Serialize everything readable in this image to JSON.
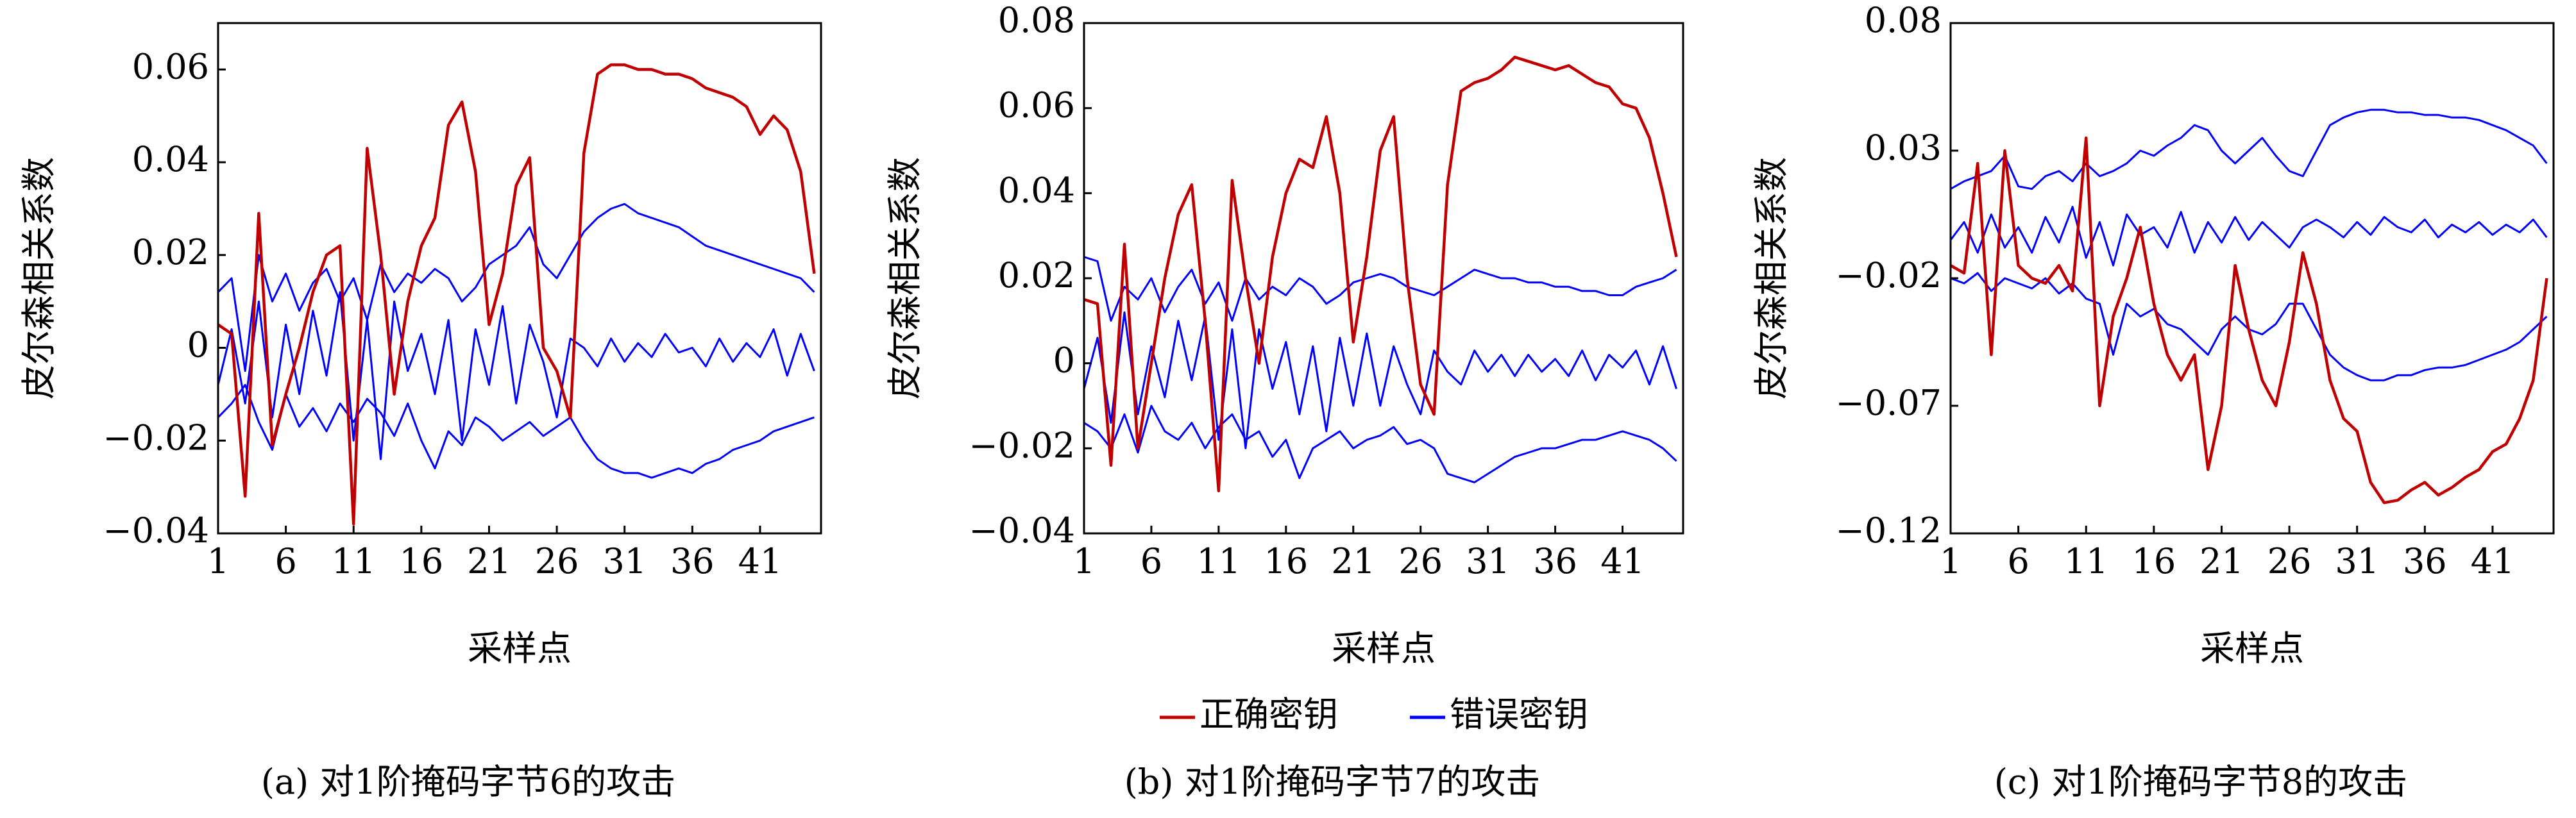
{
  "chart_data": [
    {
      "type": "line",
      "caption": "(a) 对1阶掩码字节6的攻击",
      "xlabel": "采样点",
      "ylabel": "皮尔森相关系数",
      "x": [
        1,
        2,
        3,
        4,
        5,
        6,
        7,
        8,
        9,
        10,
        11,
        12,
        13,
        14,
        15,
        16,
        17,
        18,
        19,
        20,
        21,
        22,
        23,
        24,
        25,
        26,
        27,
        28,
        29,
        30,
        31,
        32,
        33,
        34,
        35,
        36,
        37,
        38,
        39,
        40,
        41,
        42,
        43,
        44,
        45
      ],
      "xlim": [
        1,
        45.5
      ],
      "xticks": [
        1,
        6,
        11,
        16,
        21,
        26,
        31,
        36,
        41
      ],
      "ylim": [
        -0.04,
        0.07
      ],
      "yticks": [
        {
          "value": -0.04,
          "label": "−0.04"
        },
        {
          "value": -0.02,
          "label": "−0.02"
        },
        0,
        0.02,
        0.04,
        0.06
      ],
      "series": [
        {
          "name": "正确密钥",
          "color": "#c00000",
          "values": [
            0.005,
            0.003,
            -0.032,
            0.029,
            -0.021,
            -0.01,
            0.0,
            0.012,
            0.02,
            0.022,
            -0.038,
            0.043,
            0.02,
            -0.01,
            0.01,
            0.022,
            0.028,
            0.048,
            0.053,
            0.038,
            0.005,
            0.016,
            0.035,
            0.041,
            0.0,
            -0.005,
            -0.015,
            0.042,
            0.059,
            0.061,
            0.061,
            0.06,
            0.06,
            0.059,
            0.059,
            0.058,
            0.056,
            0.055,
            0.054,
            0.052,
            0.046,
            0.05,
            0.047,
            0.038,
            0.016
          ]
        },
        {
          "name": "错误密钥",
          "color": "#0000ff",
          "values": [
            0.012,
            0.015,
            -0.005,
            0.02,
            0.01,
            0.016,
            0.008,
            0.014,
            0.017,
            0.01,
            0.015,
            0.006,
            0.018,
            0.012,
            0.016,
            0.014,
            0.017,
            0.015,
            0.01,
            0.013,
            0.018,
            0.02,
            0.022,
            0.026,
            0.018,
            0.015,
            0.02,
            0.025,
            0.028,
            0.03,
            0.031,
            0.029,
            0.028,
            0.027,
            0.026,
            0.024,
            0.022,
            0.021,
            0.02,
            0.019,
            0.018,
            0.017,
            0.016,
            0.015,
            0.012
          ]
        },
        {
          "name": "错误密钥",
          "color": "#0000ff",
          "values": [
            -0.008,
            0.004,
            -0.012,
            0.01,
            -0.015,
            0.005,
            -0.01,
            0.008,
            -0.006,
            0.012,
            -0.02,
            0.006,
            -0.024,
            0.01,
            -0.005,
            0.003,
            -0.01,
            0.006,
            -0.02,
            0.004,
            -0.008,
            0.009,
            -0.012,
            0.005,
            -0.003,
            -0.015,
            0.002,
            0.0,
            -0.004,
            0.002,
            -0.003,
            0.001,
            -0.002,
            0.003,
            -0.001,
            0.0,
            -0.004,
            0.002,
            -0.003,
            0.001,
            -0.002,
            0.004,
            -0.006,
            0.003,
            -0.005
          ]
        },
        {
          "name": "错误密钥",
          "color": "#0000ff",
          "values": [
            -0.015,
            -0.012,
            -0.008,
            -0.016,
            -0.022,
            -0.01,
            -0.017,
            -0.013,
            -0.018,
            -0.012,
            -0.016,
            -0.011,
            -0.014,
            -0.019,
            -0.012,
            -0.02,
            -0.026,
            -0.018,
            -0.021,
            -0.015,
            -0.017,
            -0.02,
            -0.018,
            -0.016,
            -0.019,
            -0.017,
            -0.015,
            -0.02,
            -0.024,
            -0.026,
            -0.027,
            -0.027,
            -0.028,
            -0.027,
            -0.026,
            -0.027,
            -0.025,
            -0.024,
            -0.022,
            -0.021,
            -0.02,
            -0.018,
            -0.017,
            -0.016,
            -0.015
          ]
        }
      ]
    },
    {
      "type": "line",
      "caption": "(b) 对1阶掩码字节7的攻击",
      "xlabel": "采样点",
      "ylabel": "皮尔森相关系数",
      "x": [
        1,
        2,
        3,
        4,
        5,
        6,
        7,
        8,
        9,
        10,
        11,
        12,
        13,
        14,
        15,
        16,
        17,
        18,
        19,
        20,
        21,
        22,
        23,
        24,
        25,
        26,
        27,
        28,
        29,
        30,
        31,
        32,
        33,
        34,
        35,
        36,
        37,
        38,
        39,
        40,
        41,
        42,
        43,
        44,
        45
      ],
      "xlim": [
        1,
        45.5
      ],
      "xticks": [
        1,
        6,
        11,
        16,
        21,
        26,
        31,
        36,
        41
      ],
      "ylim": [
        -0.04,
        0.08
      ],
      "yticks": [
        {
          "value": -0.04,
          "label": "−0.04"
        },
        {
          "value": -0.02,
          "label": "−0.02"
        },
        0,
        0.02,
        0.04,
        0.06,
        0.08
      ],
      "series": [
        {
          "name": "正确密钥",
          "color": "#c00000",
          "values": [
            0.015,
            0.014,
            -0.024,
            0.028,
            -0.02,
            0.0,
            0.02,
            0.035,
            0.042,
            0.01,
            -0.03,
            0.043,
            0.02,
            0.0,
            0.025,
            0.04,
            0.048,
            0.046,
            0.058,
            0.04,
            0.005,
            0.025,
            0.05,
            0.058,
            0.02,
            -0.005,
            -0.012,
            0.042,
            0.064,
            0.066,
            0.067,
            0.069,
            0.072,
            0.071,
            0.07,
            0.069,
            0.07,
            0.068,
            0.066,
            0.065,
            0.061,
            0.06,
            0.053,
            0.04,
            0.025
          ]
        },
        {
          "name": "错误密钥",
          "color": "#0000ff",
          "values": [
            0.025,
            0.024,
            0.01,
            0.018,
            0.015,
            0.02,
            0.012,
            0.018,
            0.022,
            0.014,
            0.019,
            0.01,
            0.02,
            0.015,
            0.018,
            0.016,
            0.02,
            0.018,
            0.014,
            0.016,
            0.019,
            0.02,
            0.021,
            0.02,
            0.018,
            0.017,
            0.016,
            0.018,
            0.02,
            0.022,
            0.021,
            0.02,
            0.02,
            0.019,
            0.019,
            0.018,
            0.018,
            0.017,
            0.017,
            0.016,
            0.016,
            0.018,
            0.019,
            0.02,
            0.022
          ]
        },
        {
          "name": "错误密钥",
          "color": "#0000ff",
          "values": [
            -0.006,
            0.006,
            -0.014,
            0.012,
            -0.012,
            0.004,
            -0.008,
            0.01,
            -0.004,
            0.011,
            -0.018,
            0.008,
            -0.02,
            0.008,
            -0.006,
            0.005,
            -0.012,
            0.004,
            -0.016,
            0.006,
            -0.01,
            0.007,
            -0.01,
            0.004,
            -0.005,
            -0.012,
            0.003,
            -0.002,
            -0.005,
            0.003,
            -0.002,
            0.002,
            -0.003,
            0.002,
            -0.002,
            0.001,
            -0.003,
            0.003,
            -0.004,
            0.002,
            -0.001,
            0.003,
            -0.005,
            0.004,
            -0.006
          ]
        },
        {
          "name": "错误密钥",
          "color": "#0000ff",
          "values": [
            -0.014,
            -0.016,
            -0.02,
            -0.012,
            -0.021,
            -0.01,
            -0.016,
            -0.018,
            -0.014,
            -0.02,
            -0.015,
            -0.012,
            -0.018,
            -0.016,
            -0.022,
            -0.018,
            -0.027,
            -0.02,
            -0.018,
            -0.016,
            -0.02,
            -0.018,
            -0.017,
            -0.015,
            -0.019,
            -0.018,
            -0.02,
            -0.026,
            -0.027,
            -0.028,
            -0.026,
            -0.024,
            -0.022,
            -0.021,
            -0.02,
            -0.02,
            -0.019,
            -0.018,
            -0.018,
            -0.017,
            -0.016,
            -0.017,
            -0.018,
            -0.02,
            -0.023
          ]
        }
      ]
    },
    {
      "type": "line",
      "caption": "(c) 对1阶掩码字节8的攻击",
      "xlabel": "采样点",
      "ylabel": "皮尔森相关系数",
      "x": [
        1,
        2,
        3,
        4,
        5,
        6,
        7,
        8,
        9,
        10,
        11,
        12,
        13,
        14,
        15,
        16,
        17,
        18,
        19,
        20,
        21,
        22,
        23,
        24,
        25,
        26,
        27,
        28,
        29,
        30,
        31,
        32,
        33,
        34,
        35,
        36,
        37,
        38,
        39,
        40,
        41,
        42,
        43,
        44,
        45
      ],
      "xlim": [
        1,
        45.5
      ],
      "xticks": [
        1,
        6,
        11,
        16,
        21,
        26,
        31,
        36,
        41
      ],
      "ylim": [
        -0.12,
        0.08
      ],
      "yticks": [
        {
          "value": -0.12,
          "label": "−0.12"
        },
        {
          "value": -0.07,
          "label": "−0.07"
        },
        {
          "value": -0.02,
          "label": "−0.02"
        },
        0.03,
        0.08
      ],
      "series": [
        {
          "name": "正确密钥",
          "color": "#c00000",
          "values": [
            -0.015,
            -0.018,
            0.025,
            -0.05,
            0.03,
            -0.015,
            -0.02,
            -0.022,
            -0.015,
            -0.025,
            0.035,
            -0.07,
            -0.035,
            -0.02,
            0.0,
            -0.03,
            -0.05,
            -0.06,
            -0.05,
            -0.095,
            -0.07,
            -0.015,
            -0.04,
            -0.06,
            -0.07,
            -0.045,
            -0.01,
            -0.03,
            -0.06,
            -0.075,
            -0.08,
            -0.1,
            -0.108,
            -0.107,
            -0.103,
            -0.1,
            -0.105,
            -0.102,
            -0.098,
            -0.095,
            -0.088,
            -0.085,
            -0.075,
            -0.06,
            -0.02
          ]
        },
        {
          "name": "错误密钥",
          "color": "#0000ff",
          "values": [
            0.015,
            0.018,
            0.02,
            0.022,
            0.028,
            0.016,
            0.015,
            0.02,
            0.022,
            0.018,
            0.025,
            0.02,
            0.022,
            0.025,
            0.03,
            0.028,
            0.032,
            0.035,
            0.04,
            0.038,
            0.03,
            0.025,
            0.03,
            0.035,
            0.028,
            0.022,
            0.02,
            0.03,
            0.04,
            0.043,
            0.045,
            0.046,
            0.046,
            0.045,
            0.045,
            0.044,
            0.044,
            0.043,
            0.043,
            0.042,
            0.04,
            0.038,
            0.035,
            0.032,
            0.025
          ]
        },
        {
          "name": "错误密钥",
          "color": "#0000ff",
          "values": [
            -0.005,
            0.002,
            -0.01,
            0.005,
            -0.008,
            0.0,
            -0.01,
            0.004,
            -0.006,
            0.008,
            -0.012,
            0.002,
            -0.015,
            0.005,
            -0.003,
            0.0,
            -0.008,
            0.006,
            -0.01,
            0.002,
            -0.006,
            0.004,
            -0.005,
            0.002,
            -0.003,
            -0.008,
            0.0,
            0.003,
            0.0,
            -0.004,
            0.002,
            -0.003,
            0.004,
            0.0,
            -0.002,
            0.003,
            -0.004,
            0.001,
            -0.002,
            0.002,
            -0.003,
            0.001,
            -0.002,
            0.003,
            -0.004
          ]
        },
        {
          "name": "错误密钥",
          "color": "#0000ff",
          "values": [
            -0.02,
            -0.022,
            -0.018,
            -0.025,
            -0.02,
            -0.022,
            -0.024,
            -0.02,
            -0.026,
            -0.022,
            -0.028,
            -0.03,
            -0.05,
            -0.03,
            -0.035,
            -0.032,
            -0.038,
            -0.04,
            -0.045,
            -0.05,
            -0.04,
            -0.035,
            -0.04,
            -0.042,
            -0.038,
            -0.03,
            -0.03,
            -0.04,
            -0.05,
            -0.055,
            -0.058,
            -0.06,
            -0.06,
            -0.058,
            -0.058,
            -0.056,
            -0.055,
            -0.055,
            -0.054,
            -0.052,
            -0.05,
            -0.048,
            -0.045,
            -0.04,
            -0.035
          ]
        }
      ]
    }
  ]
}
